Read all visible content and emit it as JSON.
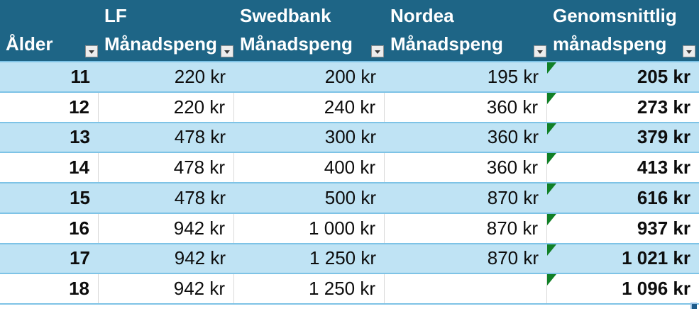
{
  "table": {
    "columns": [
      {
        "id": "alder",
        "line1": "",
        "line2": "Ålder"
      },
      {
        "id": "lf",
        "line1": "LF",
        "line2": "Månadspeng"
      },
      {
        "id": "swedbank",
        "line1": "Swedbank",
        "line2": "Månadspeng"
      },
      {
        "id": "nordea",
        "line1": "Nordea",
        "line2": "Månadspeng"
      },
      {
        "id": "genomsnittlig",
        "line1": "Genomsnittlig",
        "line2": "månadspeng"
      }
    ],
    "rows": [
      {
        "age": "11",
        "lf": "220 kr",
        "swedbank": "200 kr",
        "nordea": "195 kr",
        "avg": "205 kr"
      },
      {
        "age": "12",
        "lf": "220 kr",
        "swedbank": "240 kr",
        "nordea": "360 kr",
        "avg": "273 kr"
      },
      {
        "age": "13",
        "lf": "478 kr",
        "swedbank": "300 kr",
        "nordea": "360 kr",
        "avg": "379 kr"
      },
      {
        "age": "14",
        "lf": "478 kr",
        "swedbank": "400 kr",
        "nordea": "360 kr",
        "avg": "413 kr"
      },
      {
        "age": "15",
        "lf": "478 kr",
        "swedbank": "500 kr",
        "nordea": "870 kr",
        "avg": "616 kr"
      },
      {
        "age": "16",
        "lf": "942 kr",
        "swedbank": "1 000 kr",
        "nordea": "870 kr",
        "avg": "937 kr"
      },
      {
        "age": "17",
        "lf": "942 kr",
        "swedbank": "1 250 kr",
        "nordea": "870 kr",
        "avg": "1 021 kr"
      },
      {
        "age": "18",
        "lf": "942 kr",
        "swedbank": "1 250 kr",
        "nordea": "",
        "avg": "1 096 kr"
      }
    ],
    "icons": {
      "filter": "filter-dropdown-icon (small gray square with down chevron)",
      "error_indicator": "green corner triangle (inconsistent-formula marker)",
      "resize_handle": "blue L-shaped table sizing handle"
    },
    "colors": {
      "header_bg": "#1E6586",
      "header_text": "#FFFFFF",
      "banded_row_bg": "#BFE3F4",
      "plain_row_bg": "#FFFFFF",
      "row_border": "#7EC3E6",
      "gridline": "#D9D9D9",
      "error_triangle": "#118026",
      "resize_handle": "#1F5C8B"
    }
  }
}
